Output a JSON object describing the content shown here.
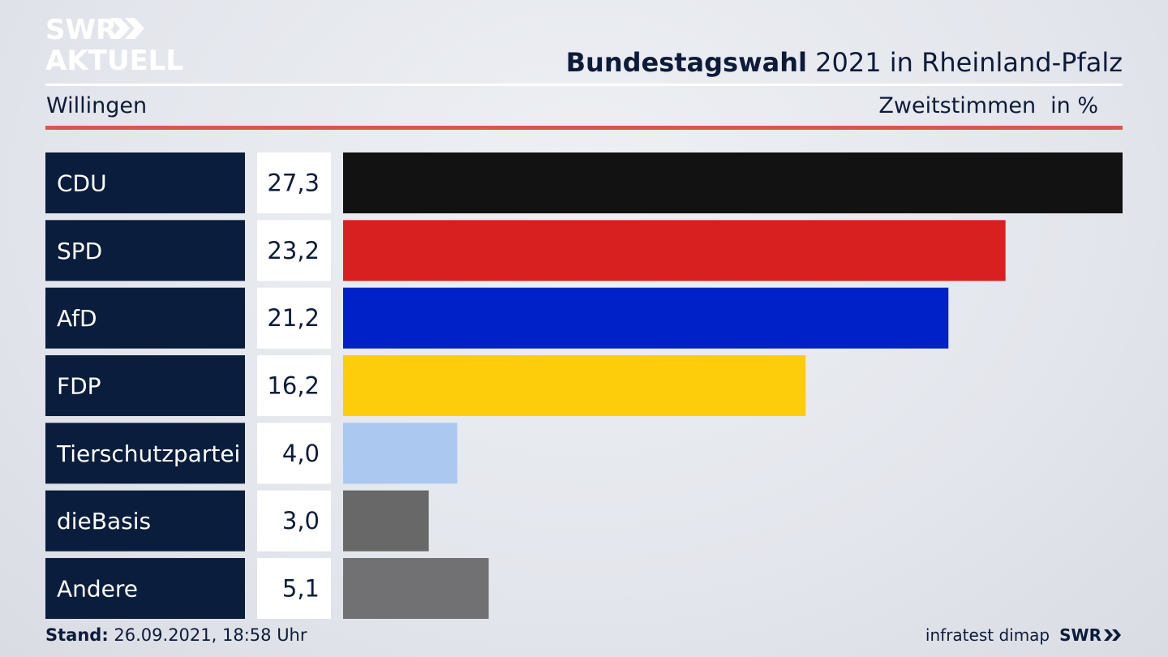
{
  "brand": {
    "line1": "SWR",
    "line2": "AKTUELL"
  },
  "header": {
    "title_bold": "Bundestagswahl",
    "title_rest": "2021 in Rheinland-Pfalz",
    "location": "Willingen",
    "measure": "Zweitstimmen",
    "unit": "in %"
  },
  "chart_data": {
    "type": "bar",
    "orientation": "horizontal",
    "title": "Bundestagswahl 2021 in Rheinland-Pfalz",
    "subtitle": "Willingen",
    "xlabel": "Zweitstimmen in %",
    "xlim": [
      0,
      27.3
    ],
    "categories": [
      "CDU",
      "SPD",
      "AfD",
      "FDP",
      "Tierschutzpartei",
      "dieBasis",
      "Andere"
    ],
    "values": [
      27.3,
      23.2,
      21.2,
      16.2,
      4.0,
      3.0,
      5.1
    ],
    "value_labels": [
      "27,3",
      "23,2",
      "21,2",
      "16,2",
      "4,0",
      "3,0",
      "5,1"
    ],
    "colors": [
      "#121212",
      "#d82020",
      "#0020c8",
      "#fdcc0a",
      "#aac8f0",
      "#686868",
      "#717173"
    ],
    "label_box_color": "#0b1d3c",
    "value_box_color": "#ffffff"
  },
  "footer": {
    "stand_label": "Stand:",
    "stand_value": "26.09.2021, 18:58 Uhr",
    "source": "infratest dimap",
    "brand": "SWR"
  }
}
